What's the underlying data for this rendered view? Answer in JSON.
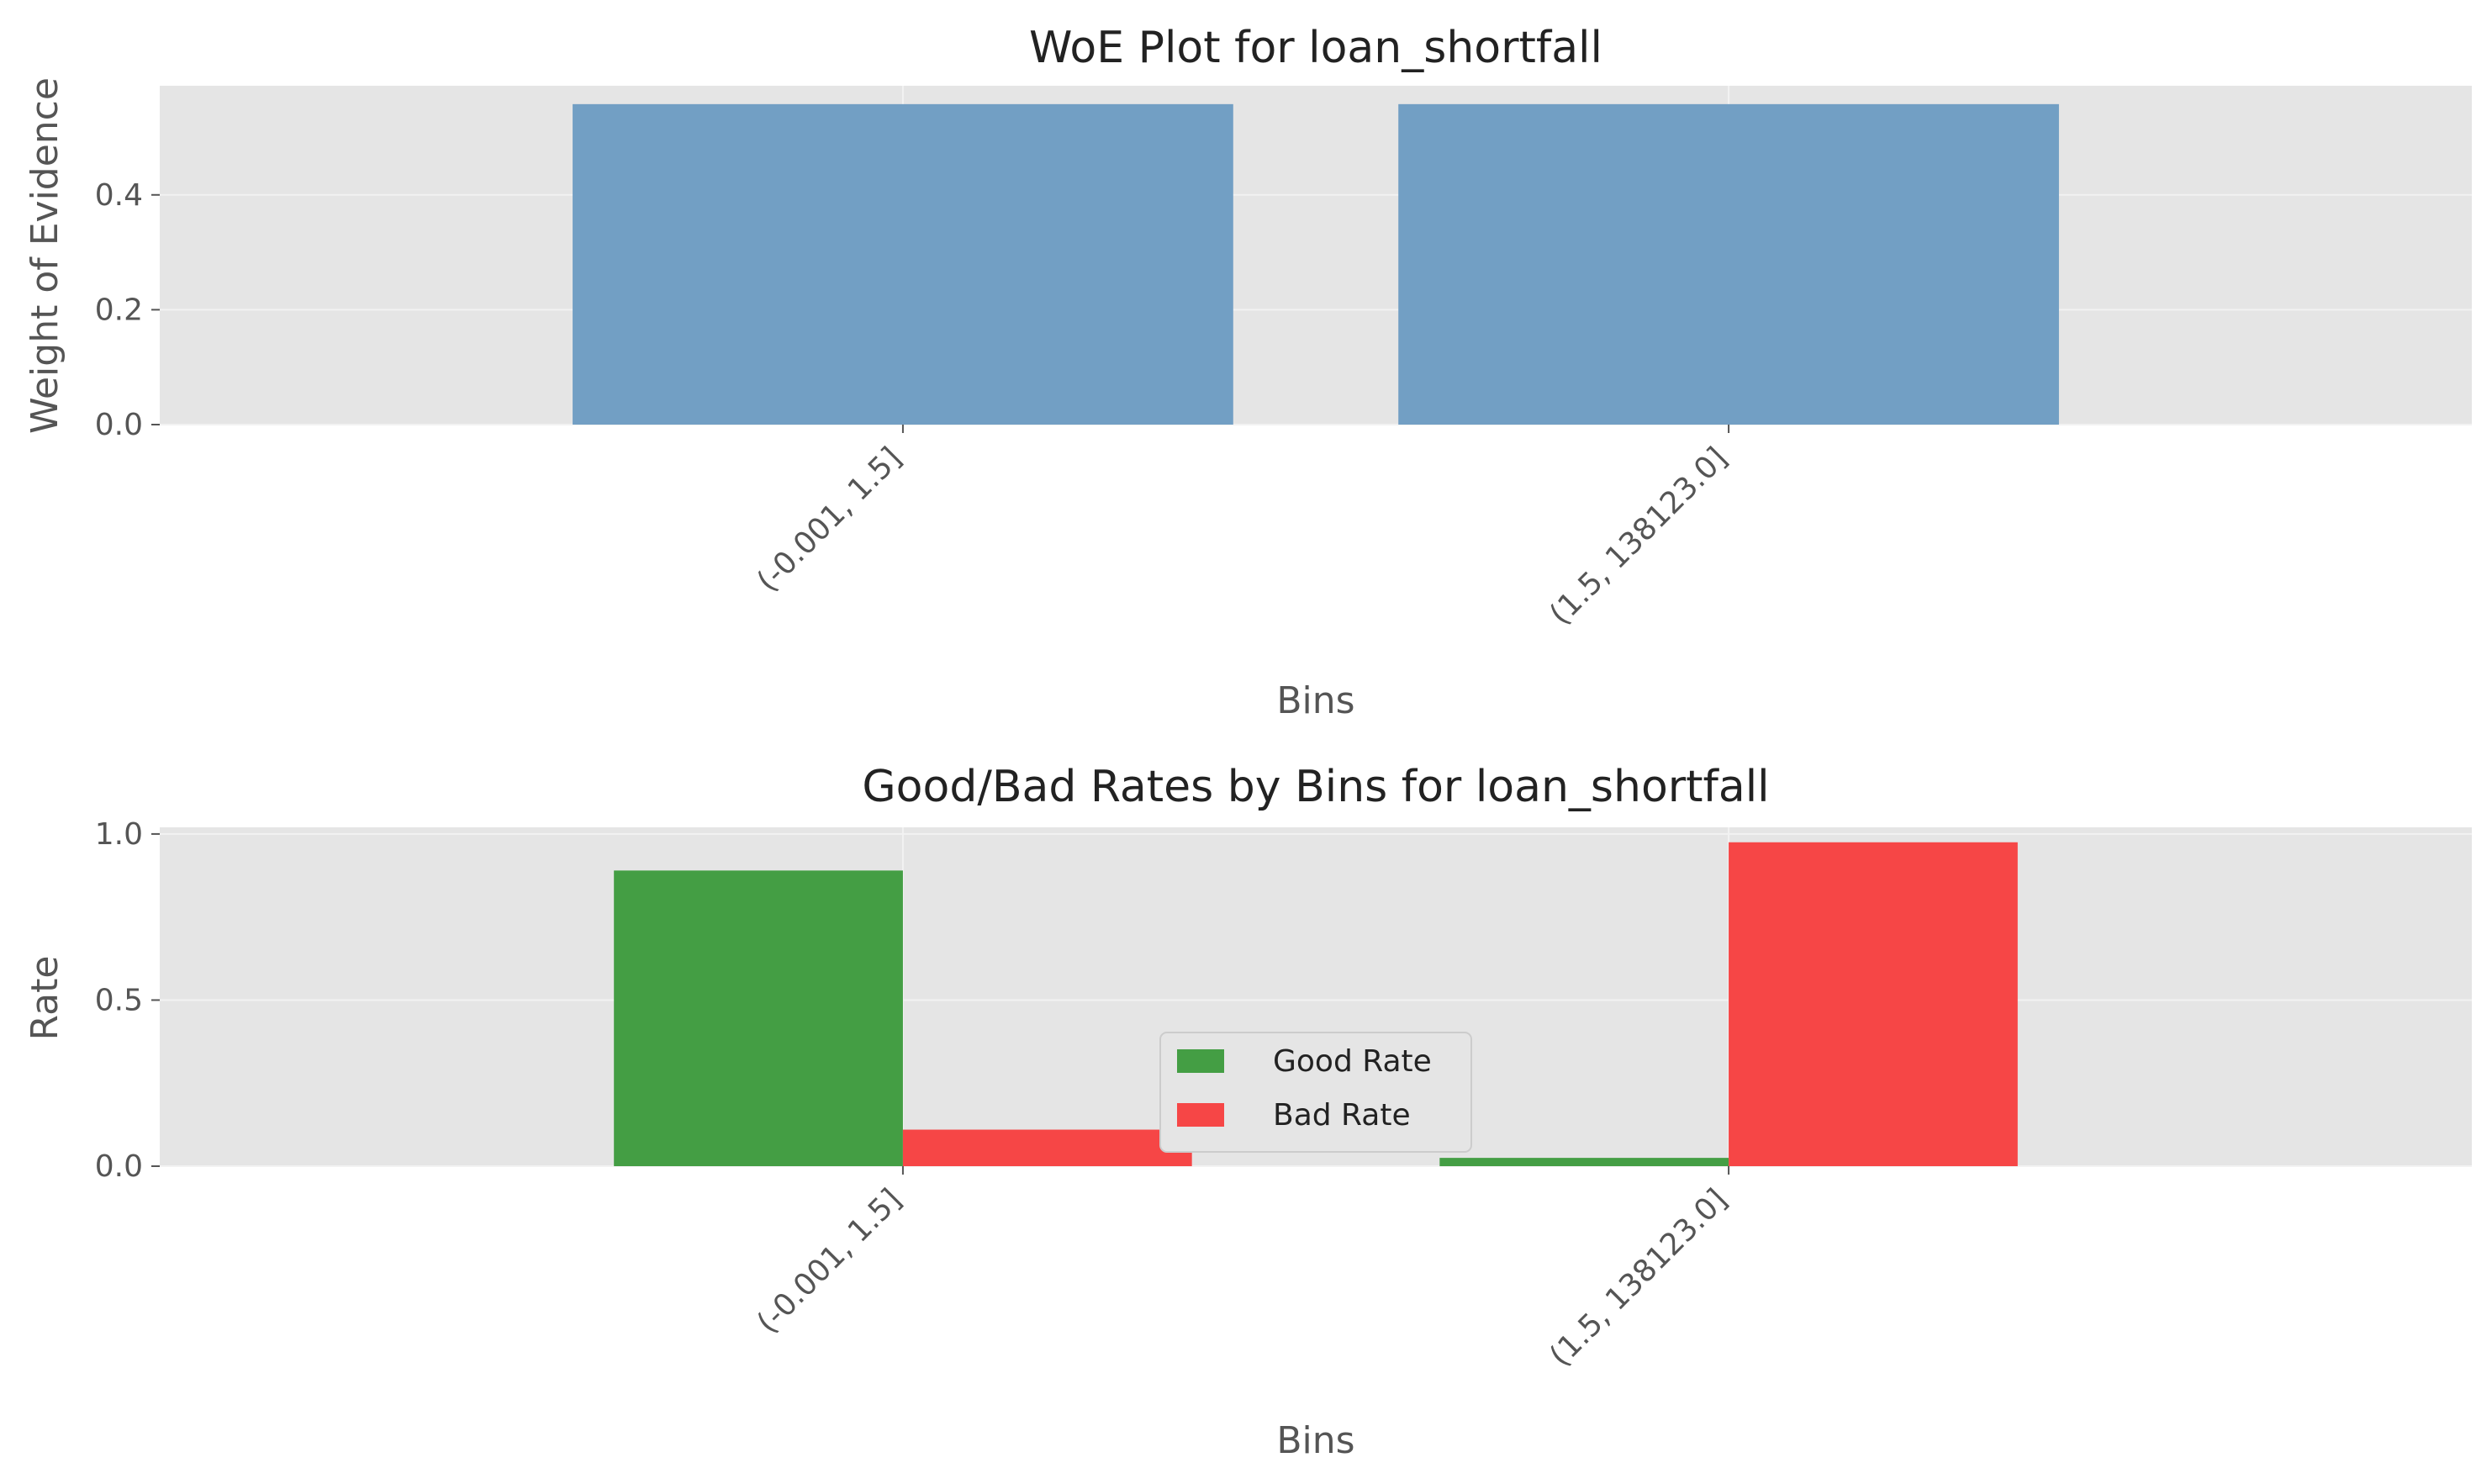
{
  "chart_data": [
    {
      "type": "bar",
      "title": "WoE Plot for loan_shortfall",
      "xlabel": "Bins",
      "ylabel": "Weight of Evidence",
      "categories": [
        "(-0.001, 1.5]",
        "(1.5, 138123.0]"
      ],
      "values": [
        0.558,
        0.558
      ],
      "ylim": [
        0,
        0.59
      ],
      "yticks": [
        0.0,
        0.2,
        0.4
      ],
      "ytick_labels": [
        "0.0",
        "0.2",
        "0.4"
      ],
      "grid": true,
      "colors": {
        "bar": "#729fc4",
        "background": "#e5e5e5",
        "grid": "#f2f2f2"
      }
    },
    {
      "type": "bar",
      "title": "Good/Bad Rates by Bins for loan_shortfall",
      "xlabel": "Bins",
      "ylabel": "Rate",
      "categories": [
        "(-0.001, 1.5]",
        "(1.5, 138123.0]"
      ],
      "series": [
        {
          "name": "Good Rate",
          "values": [
            0.89,
            0.025
          ],
          "color": "#449e44"
        },
        {
          "name": "Bad Rate",
          "values": [
            0.11,
            0.975
          ],
          "color": "#f64646"
        }
      ],
      "ylim": [
        0,
        1.02
      ],
      "yticks": [
        0.0,
        0.5,
        1.0
      ],
      "ytick_labels": [
        "0.0",
        "0.5",
        "1.0"
      ],
      "grid": true,
      "legend": "center",
      "colors": {
        "background": "#e5e5e5",
        "grid": "#f2f2f2"
      }
    }
  ]
}
